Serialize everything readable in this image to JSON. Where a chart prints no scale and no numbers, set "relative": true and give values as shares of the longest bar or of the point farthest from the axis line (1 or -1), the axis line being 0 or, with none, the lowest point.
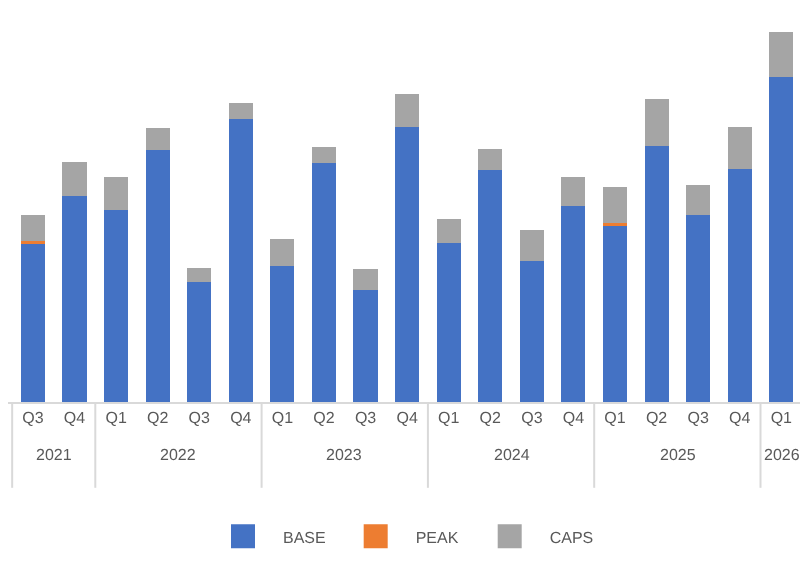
{
  "chart_data": {
    "type": "bar",
    "stacked": true,
    "relative": true,
    "legend": "bottom",
    "categories": [
      "Q3",
      "Q4",
      "Q1",
      "Q2",
      "Q3",
      "Q4",
      "Q1",
      "Q2",
      "Q3",
      "Q4",
      "Q1",
      "Q2",
      "Q3",
      "Q4",
      "Q1",
      "Q2",
      "Q3",
      "Q4",
      "Q1"
    ],
    "annotations": [
      "2021",
      "2022",
      "2023",
      "2024",
      "2025",
      "2026"
    ],
    "series": [
      {
        "name": "BASE",
        "color": "#4472c4",
        "values": [
          0.427,
          0.555,
          0.517,
          0.68,
          0.323,
          0.765,
          0.368,
          0.645,
          0.303,
          0.742,
          0.429,
          0.626,
          0.38,
          0.528,
          0.477,
          0.692,
          0.506,
          0.63,
          0.876
        ]
      },
      {
        "name": "PEAK",
        "color": "#ed7d31",
        "values": [
          0.008,
          0,
          0,
          0,
          0,
          0,
          0,
          0,
          0,
          0,
          0,
          0,
          0,
          0,
          0.006,
          0,
          0,
          0,
          0
        ]
      },
      {
        "name": "CAPS",
        "color": "#a5a5a5",
        "values": [
          0.07,
          0.094,
          0.09,
          0.06,
          0.038,
          0.041,
          0.073,
          0.043,
          0.056,
          0.088,
          0.066,
          0.058,
          0.085,
          0.079,
          0.098,
          0.126,
          0.081,
          0.113,
          0.124
        ]
      }
    ]
  }
}
